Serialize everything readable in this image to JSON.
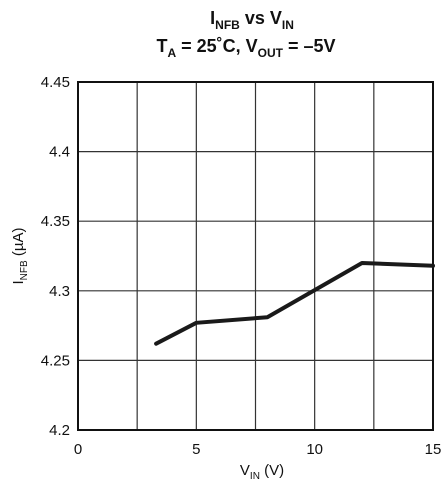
{
  "chart_data": {
    "type": "line",
    "title": {
      "line1": {
        "main": "I",
        "sub": "NFB",
        "rest": " vs V",
        "sub2": "IN"
      },
      "line2": {
        "a": "T",
        "a_sub": "A",
        "b": " = 25˚C, V",
        "b_sub": "OUT",
        "c": " = –5V"
      }
    },
    "xlabel": {
      "main": "V",
      "sub": "IN",
      "rest": " (V)"
    },
    "ylabel": {
      "main": "I",
      "sub": "NFB",
      "rest": " (µA)"
    },
    "xlim": [
      0,
      15
    ],
    "ylim": [
      4.2,
      4.45
    ],
    "x_ticks": [
      0,
      5,
      10,
      15
    ],
    "x_tick_labels": [
      "0",
      "5",
      "10",
      "15"
    ],
    "x_grid": [
      0,
      2.5,
      5,
      7.5,
      10,
      12.5,
      15
    ],
    "y_ticks": [
      4.2,
      4.25,
      4.3,
      4.35,
      4.4,
      4.45
    ],
    "y_tick_labels": [
      "4.2",
      "4.25",
      "4.3",
      "4.35",
      "4.4",
      "4.45"
    ],
    "grid": true,
    "series": [
      {
        "color": "#1a1a1a",
        "x": [
          3.3,
          5.0,
          8.0,
          12.0,
          15.0
        ],
        "y": [
          4.262,
          4.277,
          4.281,
          4.32,
          4.318
        ]
      }
    ]
  }
}
